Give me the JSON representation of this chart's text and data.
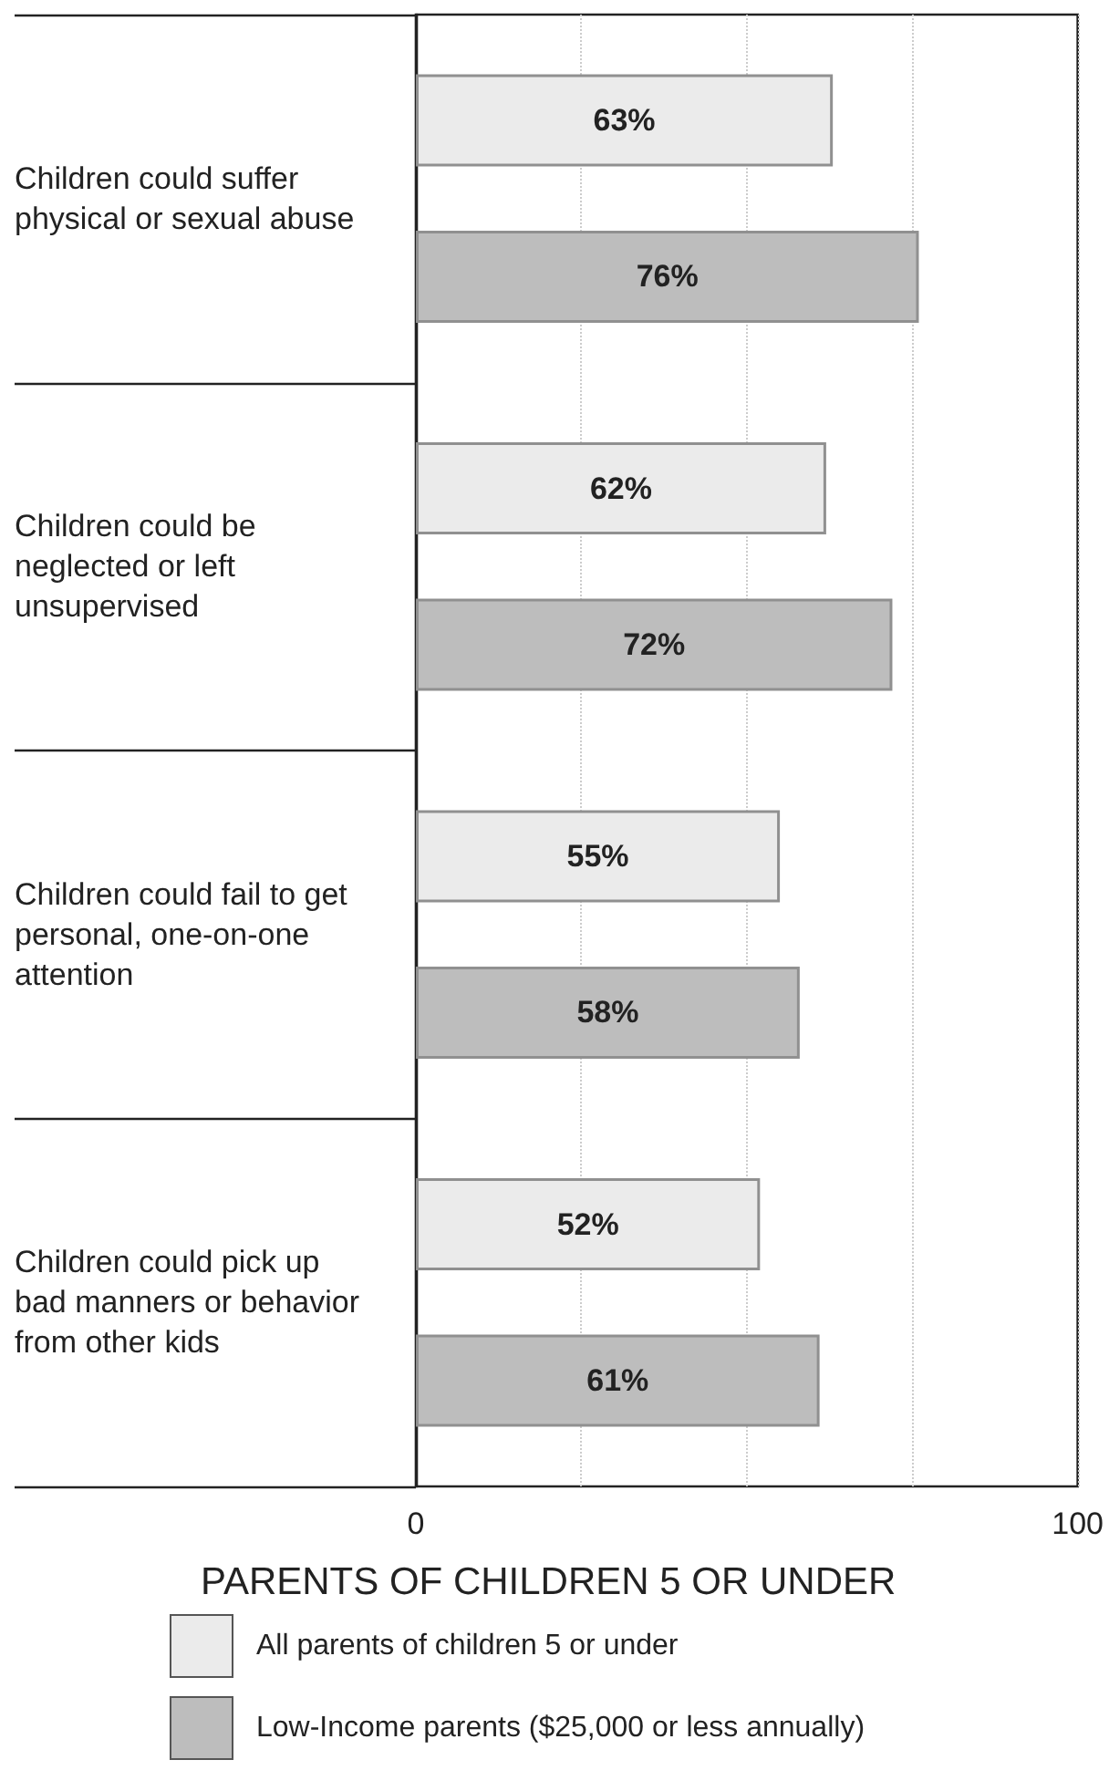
{
  "chart_data": {
    "type": "bar",
    "orientation": "horizontal",
    "xlabel": "PARENTS OF CHILDREN 5 OR UNDER",
    "categories": [
      "Children could suffer physical or sexual abuse",
      "Children could be neglected or left unsupervised",
      "Children could fail to get personal, one-on-one attention",
      "Children could pick up bad manners or behavior from other kids"
    ],
    "series": [
      {
        "name": "All parents of children 5 or under",
        "color": "#ebebeb",
        "values": [
          63,
          62,
          55,
          52
        ],
        "value_labels": [
          "63%",
          "62%",
          "55%",
          "52%"
        ]
      },
      {
        "name": "Low-Income parents ($25,000 or less annually)",
        "color": "#bdbdbd",
        "values": [
          76,
          72,
          58,
          61
        ],
        "value_labels": [
          "76%",
          "72%",
          "58%",
          "61%"
        ]
      }
    ],
    "xlim": [
      0,
      100
    ],
    "xticks": [
      0,
      {
        "value": 25,
        "label": null
      },
      {
        "value": 50,
        "label": null
      },
      {
        "value": 75,
        "label": null
      },
      100
    ],
    "grid": "x",
    "legend": "bottom"
  }
}
